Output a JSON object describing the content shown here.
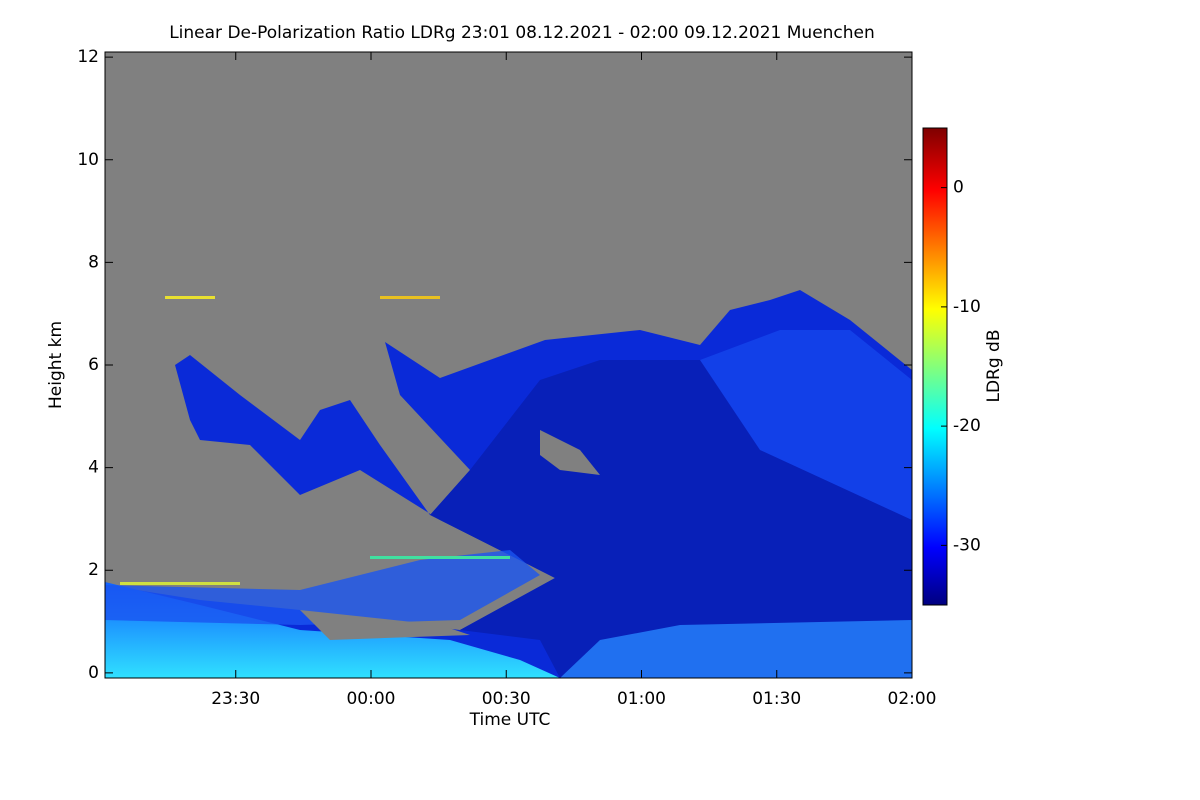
{
  "chart_data": {
    "type": "heatmap",
    "title": "Linear De-Polarization Ratio LDRg   23:01 08.12.2021 - 02:00 09.12.2021 Muenchen",
    "xlabel": "Time UTC",
    "ylabel": "Height km",
    "xlim": [
      1,
      180
    ],
    "xticks": [
      {
        "value": 30,
        "label": "23:30"
      },
      {
        "value": 60,
        "label": "00:00"
      },
      {
        "value": 90,
        "label": "00:30"
      },
      {
        "value": 120,
        "label": "01:00"
      },
      {
        "value": 150,
        "label": "01:30"
      },
      {
        "value": 180,
        "label": "02:00"
      }
    ],
    "ylim": [
      -0.1,
      12.1
    ],
    "yticks": [
      0,
      2,
      4,
      6,
      8,
      10,
      12
    ],
    "colorbar": {
      "label": "LDRg dB",
      "lim": [
        -35,
        5
      ],
      "ticks": [
        0,
        -10,
        -20,
        -30
      ]
    }
  }
}
